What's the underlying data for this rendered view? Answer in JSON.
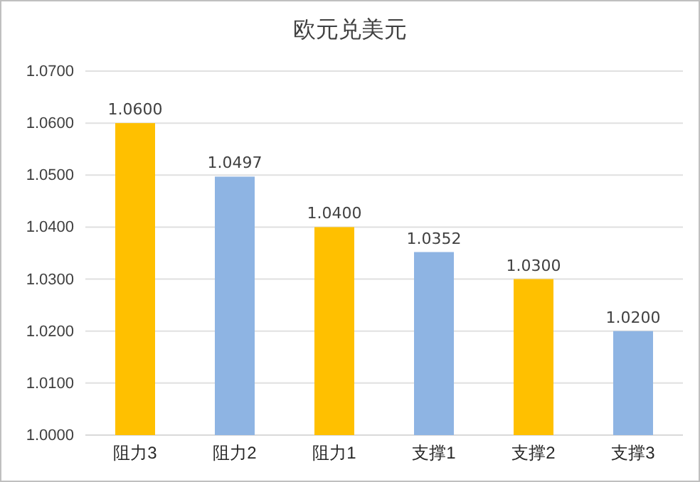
{
  "chart_data": {
    "type": "bar",
    "title": "欧元兑美元",
    "categories": [
      "阻力3",
      "阻力2",
      "阻力1",
      "支撑1",
      "支撑2",
      "支撑3"
    ],
    "values": [
      1.06,
      1.0497,
      1.04,
      1.0352,
      1.03,
      1.02
    ],
    "colors": [
      "#ffc000",
      "#8eb4e3",
      "#ffc000",
      "#8eb4e3",
      "#ffc000",
      "#8eb4e3"
    ],
    "value_labels": [
      "1.0600",
      "1.0497",
      "1.0400",
      "1.0352",
      "1.0300",
      "1.0200"
    ],
    "ylim": [
      1.0,
      1.07
    ],
    "yticks": [
      {
        "value": 1.0,
        "label": "1.0000"
      },
      {
        "value": 1.01,
        "label": "1.0100"
      },
      {
        "value": 1.02,
        "label": "1.0200"
      },
      {
        "value": 1.03,
        "label": "1.0300"
      },
      {
        "value": 1.04,
        "label": "1.0400"
      },
      {
        "value": 1.05,
        "label": "1.0500"
      },
      {
        "value": 1.06,
        "label": "1.0600"
      },
      {
        "value": 1.07,
        "label": "1.0700"
      }
    ],
    "grid": "y"
  }
}
